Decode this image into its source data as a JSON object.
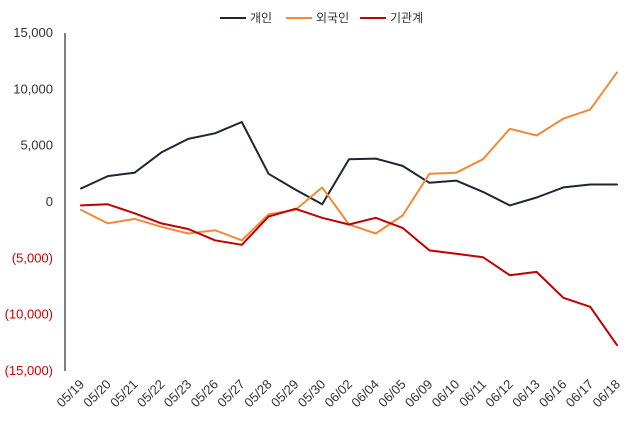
{
  "chart_data": {
    "type": "line",
    "title": "",
    "xlabel": "",
    "ylabel": "",
    "ylim": [
      -15000,
      15000
    ],
    "yticks": [
      {
        "value": 15000,
        "label": "15,000",
        "negative": false
      },
      {
        "value": 10000,
        "label": "10,000",
        "negative": false
      },
      {
        "value": 5000,
        "label": "5,000",
        "negative": false
      },
      {
        "value": 0,
        "label": "0",
        "negative": false
      },
      {
        "value": -5000,
        "label": "(5,000)",
        "negative": true
      },
      {
        "value": -10000,
        "label": "(10,000)",
        "negative": true
      },
      {
        "value": -15000,
        "label": "(15,000)",
        "negative": true
      }
    ],
    "categories": [
      "05/19",
      "05/20",
      "05/21",
      "05/22",
      "05/23",
      "05/26",
      "05/27",
      "05/28",
      "05/29",
      "05/30",
      "06/02",
      "06/04",
      "06/05",
      "06/09",
      "06/10",
      "06/11",
      "06/12",
      "06/13",
      "06/16",
      "06/17",
      "06/18"
    ],
    "legend_position": "top-center",
    "series": [
      {
        "name": "개인",
        "color": "#1f2533",
        "values": [
          1200,
          2300,
          2600,
          4400,
          5600,
          6100,
          7100,
          2500,
          1100,
          -200,
          3800,
          3850,
          3200,
          1700,
          1900,
          900,
          -300,
          400,
          1300,
          1550,
          1550
        ]
      },
      {
        "name": "외국인",
        "color": "#f08a38",
        "values": [
          -700,
          -1900,
          -1500,
          -2200,
          -2800,
          -2500,
          -3400,
          -1100,
          -700,
          1300,
          -2000,
          -2800,
          -1200,
          2500,
          2600,
          3800,
          6500,
          5900,
          7400,
          8200,
          11500
        ]
      },
      {
        "name": "기관계",
        "color": "#c00000",
        "values": [
          -300,
          -200,
          -1000,
          -1900,
          -2400,
          -3400,
          -3800,
          -1300,
          -600,
          -1400,
          -2000,
          -1400,
          -2300,
          -4300,
          -4600,
          -4900,
          -6500,
          -6200,
          -8500,
          -9300,
          -12700
        ]
      }
    ]
  }
}
